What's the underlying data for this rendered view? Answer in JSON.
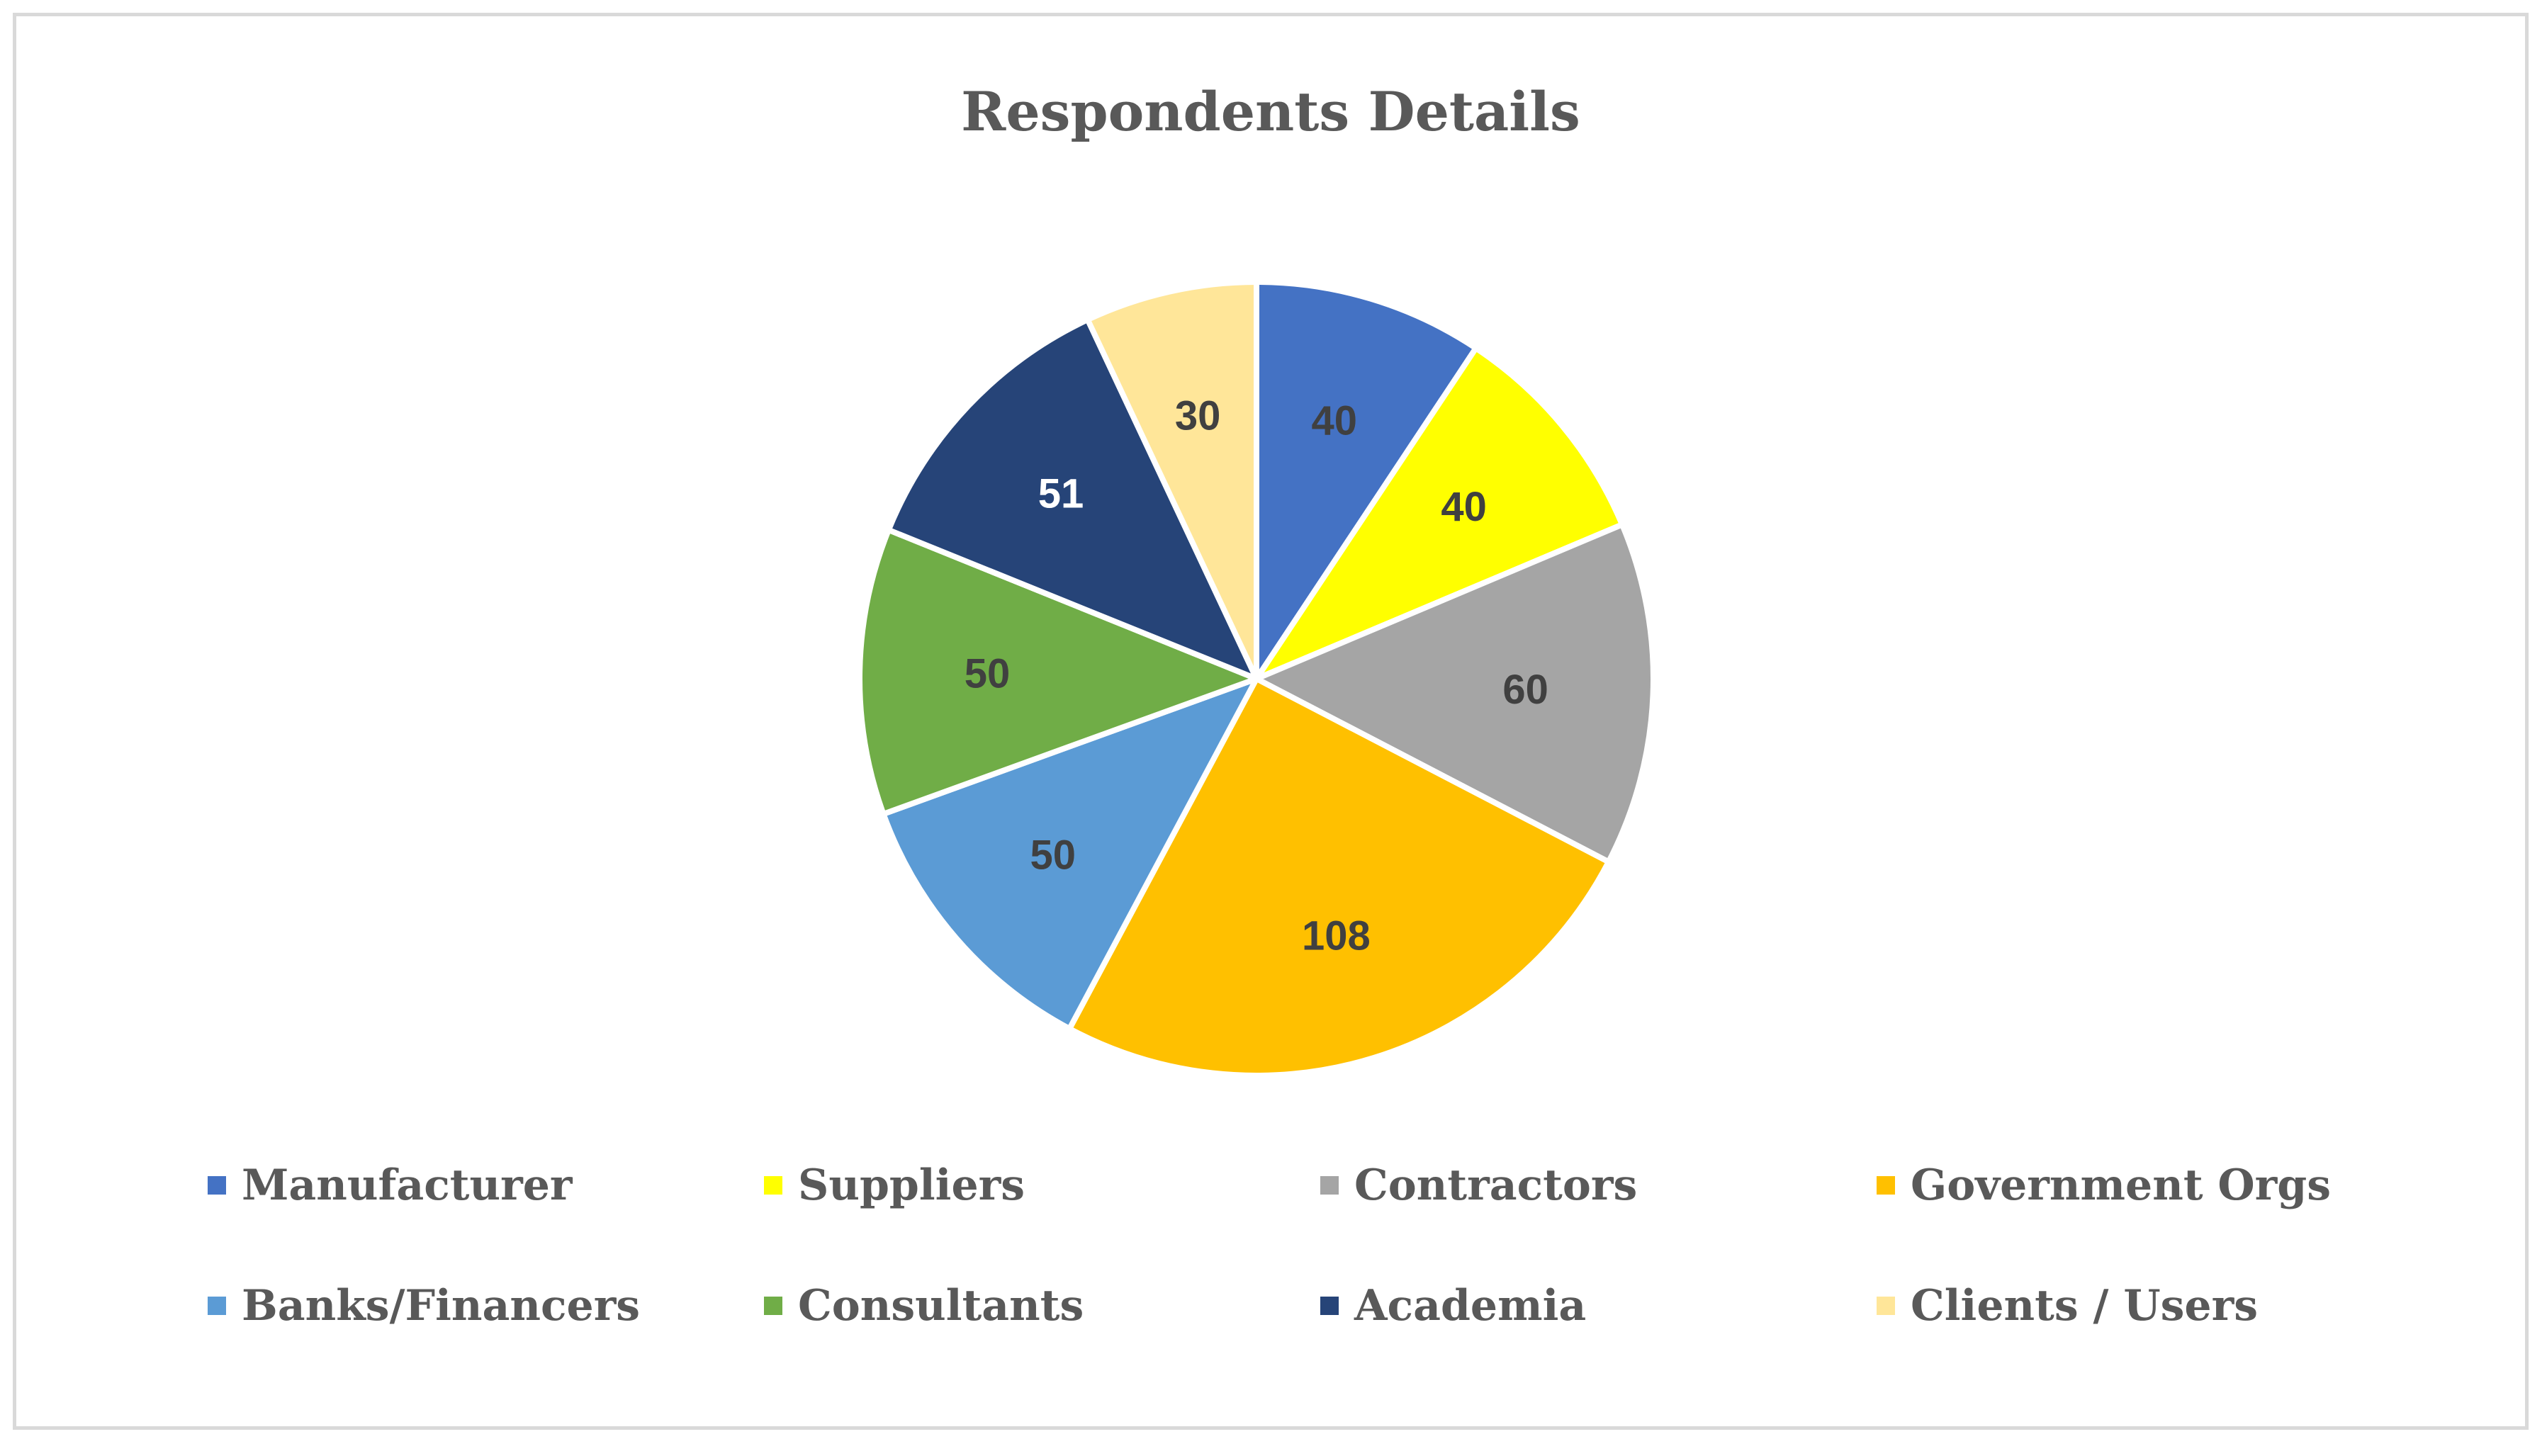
{
  "chart_data": {
    "type": "pie",
    "title": "Respondents Details",
    "categories": [
      "Manufacturer",
      "Suppliers",
      "Contractors",
      "Government Orgs",
      "Banks/Financers",
      "Consultants",
      "Academia",
      "Clients / Users"
    ],
    "values": [
      40,
      40,
      60,
      108,
      50,
      50,
      51,
      30
    ],
    "colors": [
      "#4472C4",
      "#FFFF00",
      "#A5A5A5",
      "#FFC000",
      "#5B9BD5",
      "#70AD47",
      "#264478",
      "#FFE699"
    ],
    "label_colors": [
      "#404040",
      "#404040",
      "#404040",
      "#404040",
      "#404040",
      "#404040",
      "#FFFFFF",
      "#404040"
    ],
    "legend_position": "bottom",
    "start_angle": "12 o'clock, clockwise"
  }
}
